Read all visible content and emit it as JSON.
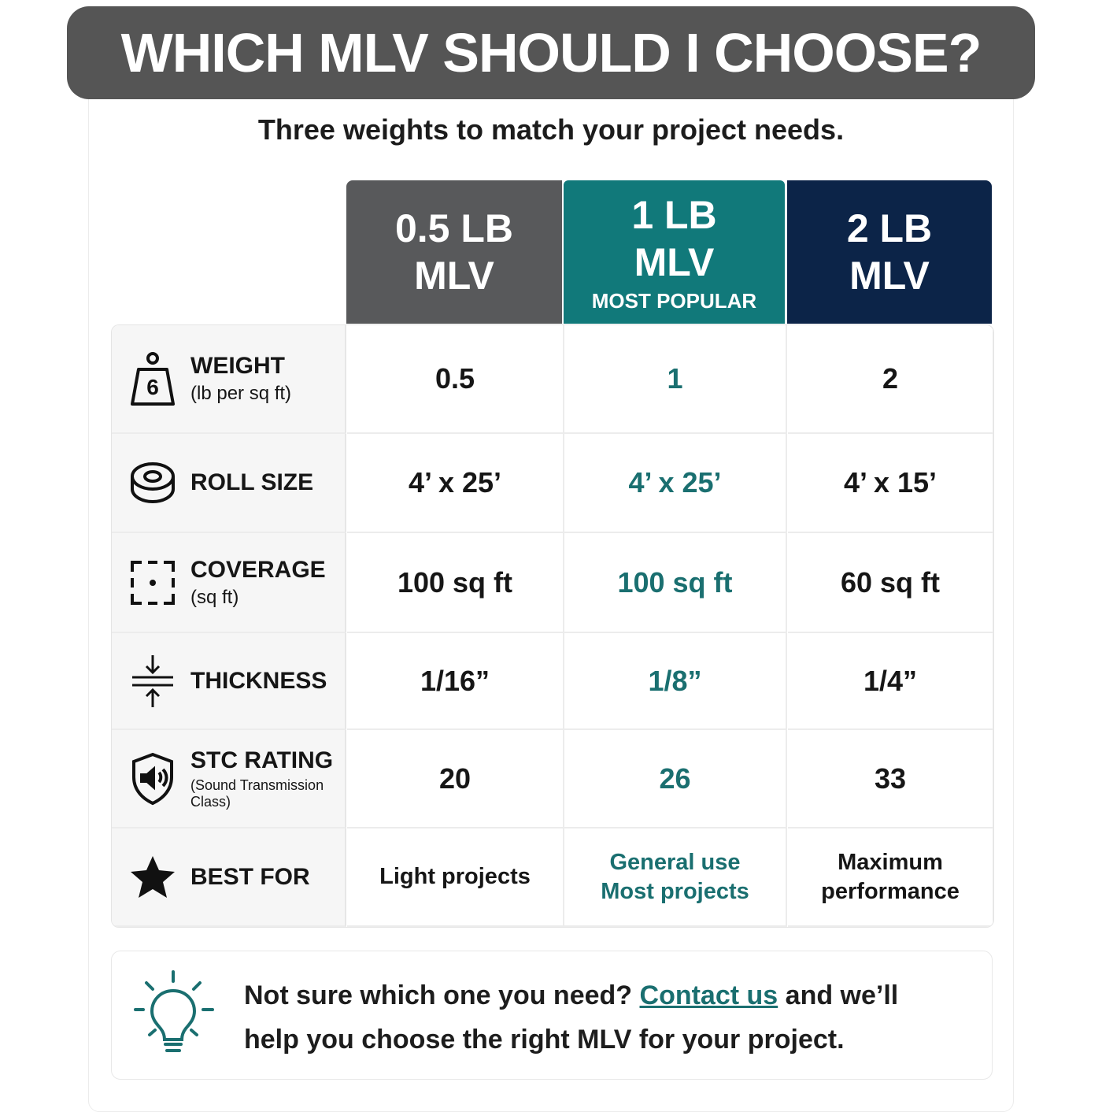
{
  "header": {
    "title": "WHICH MLV SHOULD I CHOOSE?",
    "subtitle": "Three weights to match your project needs."
  },
  "table": {
    "columns": [
      {
        "lines": [
          "0.5 LB",
          "MLV"
        ]
      },
      {
        "lines": [
          "1 LB",
          "MLV"
        ],
        "badge": "MOST POPULAR"
      },
      {
        "lines": [
          "2 LB",
          "MLV"
        ]
      }
    ],
    "rows": [
      {
        "label": "WEIGHT",
        "sublabel": "(lb per sq ft)",
        "cells": [
          [
            "0.5"
          ],
          [
            "1"
          ],
          [
            "2"
          ]
        ]
      },
      {
        "label": "ROLL SIZE",
        "cells": [
          [
            "4’ x 25’"
          ],
          [
            "4’ x 25’"
          ],
          [
            "4’ x 15’"
          ]
        ]
      },
      {
        "label": "COVERAGE",
        "sublabel": "(sq ft)",
        "cells": [
          [
            "100 sq ft"
          ],
          [
            "100 sq ft"
          ],
          [
            "60 sq ft"
          ]
        ]
      },
      {
        "label": "THICKNESS",
        "cells": [
          [
            "1/16”"
          ],
          [
            "1/8”"
          ],
          [
            "1/4”"
          ]
        ]
      },
      {
        "label": "STC RATING",
        "sublabel": "(Sound Transmission Class)",
        "cells": [
          [
            "20"
          ],
          [
            "26"
          ],
          [
            "33"
          ]
        ]
      },
      {
        "label": "BEST FOR",
        "cells": [
          [
            "Light projects"
          ],
          [
            "General use",
            "Most projects"
          ],
          [
            "Maximum",
            "performance"
          ]
        ]
      }
    ]
  },
  "footer": {
    "before": "Not sure which one you need?",
    "link": "Contact us",
    "after": "and we’ll",
    "line2": "help you choose the right MLV for your project."
  }
}
